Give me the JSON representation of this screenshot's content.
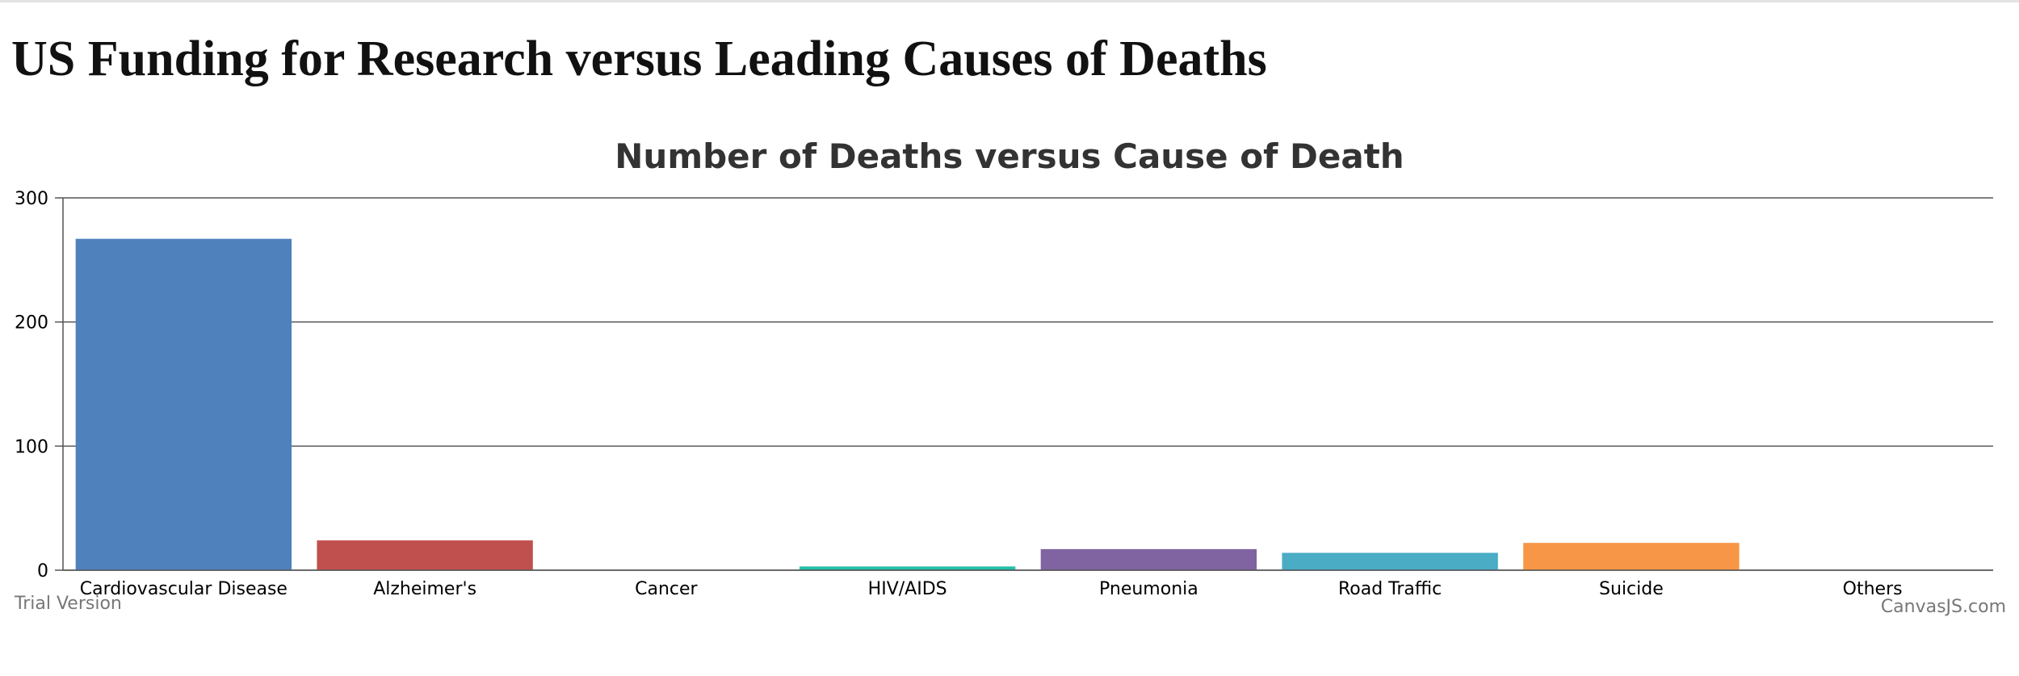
{
  "page": {
    "title": "US Funding for Research versus Leading Causes of Deaths"
  },
  "watermark": {
    "left": "Trial Version",
    "right": "CanvasJS.com"
  },
  "chart_data": {
    "type": "bar",
    "title": "Number of Deaths versus Cause of Death",
    "xlabel": "",
    "ylabel": "",
    "ylim": [
      0,
      300
    ],
    "yticks": [
      "0",
      "100",
      "200",
      "300"
    ],
    "grid": true,
    "categories": [
      "Cardiovascular Disease",
      "Alzheimer's",
      "Cancer",
      "HIV/AIDS",
      "Pneumonia",
      "Road Traffic",
      "Suicide",
      "Others"
    ],
    "values": [
      267,
      24,
      0,
      3,
      17,
      14,
      22,
      0
    ],
    "colors": [
      "#4f81bc",
      "#c0504e",
      "#9bbb58",
      "#23bfaa",
      "#8064a1",
      "#4aacc5",
      "#f79647",
      "#33558b"
    ]
  }
}
